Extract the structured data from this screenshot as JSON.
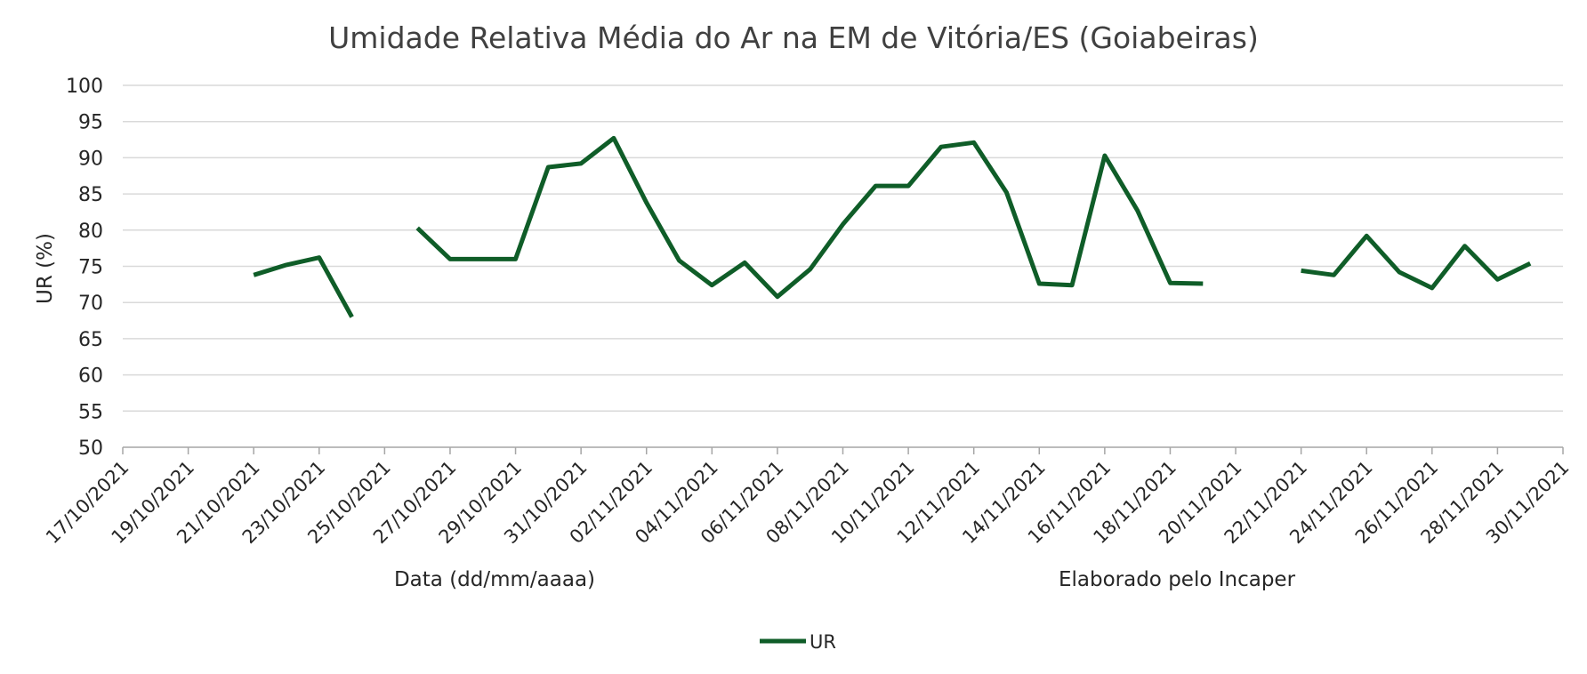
{
  "chart_data": {
    "type": "line",
    "title": "Umidade Relativa Média do Ar na EM de Vitória/ES (Goiabeiras)",
    "xlabel": "Data (dd/mm/aaaa)",
    "ylabel": "UR (%)",
    "note": "Elaborado pelo Incaper",
    "ylim": [
      50,
      100
    ],
    "yticks": [
      "100",
      "95",
      "90",
      "85",
      "80",
      "75",
      "70",
      "65",
      "60",
      "55",
      "50"
    ],
    "xlim": [
      "2021-10-17",
      "2021-11-30"
    ],
    "xticks": [
      "17/10/2021",
      "19/10/2021",
      "21/10/2021",
      "23/10/2021",
      "25/10/2021",
      "27/10/2021",
      "29/10/2021",
      "31/10/2021",
      "02/11/2021",
      "04/11/2021",
      "06/11/2021",
      "08/11/2021",
      "10/11/2021",
      "12/11/2021",
      "14/11/2021",
      "16/11/2021",
      "18/11/2021",
      "20/11/2021",
      "22/11/2021",
      "24/11/2021",
      "26/11/2021",
      "28/11/2021",
      "30/11/2021"
    ],
    "grid": true,
    "legend": "bottom",
    "series": [
      {
        "name": "UR",
        "color": "#0f5d28",
        "points": [
          [
            "2021-10-21",
            73.8
          ],
          [
            "2021-10-22",
            75.2
          ],
          [
            "2021-10-23",
            76.2
          ],
          [
            "2021-10-24",
            68.0
          ],
          [
            "2021-10-25",
            null
          ],
          [
            "2021-10-26",
            80.3
          ],
          [
            "2021-10-27",
            76.0
          ],
          [
            "2021-10-28",
            76.0
          ],
          [
            "2021-10-29",
            76.0
          ],
          [
            "2021-10-30",
            88.7
          ],
          [
            "2021-10-31",
            89.2
          ],
          [
            "2021-11-01",
            92.7
          ],
          [
            "2021-11-02",
            83.8
          ],
          [
            "2021-11-03",
            75.8
          ],
          [
            "2021-11-04",
            72.4
          ],
          [
            "2021-11-05",
            75.5
          ],
          [
            "2021-11-06",
            70.8
          ],
          [
            "2021-11-07",
            74.6
          ],
          [
            "2021-11-08",
            80.8
          ],
          [
            "2021-11-09",
            86.1
          ],
          [
            "2021-11-10",
            86.1
          ],
          [
            "2021-11-11",
            91.5
          ],
          [
            "2021-11-12",
            92.1
          ],
          [
            "2021-11-13",
            85.2
          ],
          [
            "2021-11-14",
            72.6
          ],
          [
            "2021-11-15",
            72.4
          ],
          [
            "2021-11-16",
            90.3
          ],
          [
            "2021-11-17",
            82.7
          ],
          [
            "2021-11-18",
            72.7
          ],
          [
            "2021-11-19",
            72.6
          ],
          [
            "2021-11-20",
            null
          ],
          [
            "2021-11-21",
            null
          ],
          [
            "2021-11-22",
            74.4
          ],
          [
            "2021-11-23",
            73.8
          ],
          [
            "2021-11-24",
            79.2
          ],
          [
            "2021-11-25",
            74.2
          ],
          [
            "2021-11-26",
            72.0
          ],
          [
            "2021-11-27",
            77.8
          ],
          [
            "2021-11-28",
            73.2
          ],
          [
            "2021-11-29",
            75.4
          ]
        ]
      }
    ]
  }
}
